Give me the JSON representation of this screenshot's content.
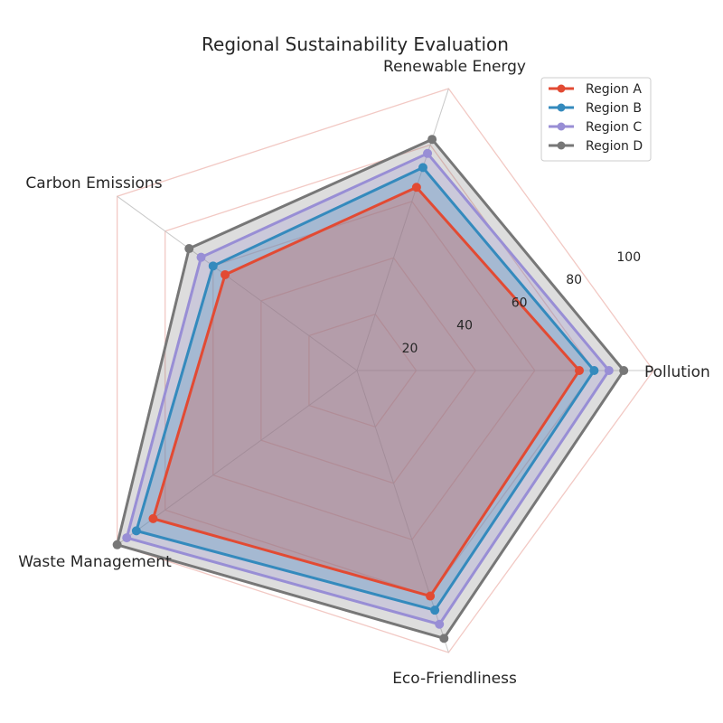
{
  "chart_data": {
    "type": "radar",
    "title": "Regional Sustainability Evaluation",
    "axes": [
      "Pollution",
      "Renewable Energy",
      "Carbon Emissions",
      "Waste Management",
      "Eco-Friendliness"
    ],
    "rlim": [
      0,
      100
    ],
    "rticks": [
      20,
      40,
      60,
      80,
      100
    ],
    "grid": true,
    "legend_position": "top-right",
    "series": [
      {
        "name": "Region A",
        "values": [
          75,
          65,
          55,
          85,
          80
        ],
        "color": "#E24A33"
      },
      {
        "name": "Region B",
        "values": [
          80,
          72,
          60,
          92,
          85
        ],
        "color": "#348ABD"
      },
      {
        "name": "Region C",
        "values": [
          85,
          77,
          65,
          96,
          90
        ],
        "color": "#988ED5"
      },
      {
        "name": "Region D",
        "values": [
          90,
          82,
          70,
          100,
          95
        ],
        "color": "#777777"
      }
    ]
  }
}
